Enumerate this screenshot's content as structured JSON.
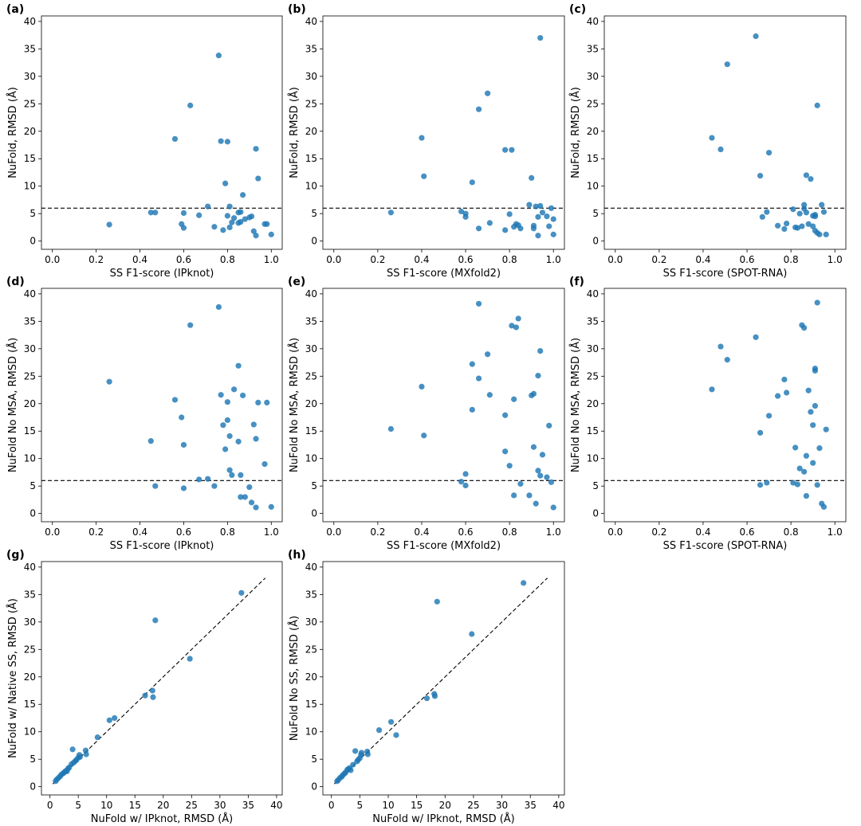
{
  "chart_data": [
    {
      "panel": "(a)",
      "type": "scatter",
      "xlabel": "SS F1-score (IPknot)",
      "ylabel": "NuFold, RMSD (Å)",
      "xlim": [
        -0.05,
        1.05
      ],
      "ylim": [
        -1.5,
        41
      ],
      "xticks": [
        "0.0",
        "0.2",
        "0.4",
        "0.6",
        "0.8",
        "1.0"
      ],
      "yticks": [
        "0",
        "5",
        "10",
        "15",
        "20",
        "25",
        "30",
        "35",
        "40"
      ],
      "hline": 6,
      "color": "#1f77b4",
      "x": [
        0.26,
        0.45,
        0.47,
        0.56,
        0.59,
        0.6,
        0.6,
        0.63,
        0.67,
        0.71,
        0.74,
        0.76,
        0.77,
        0.78,
        0.79,
        0.8,
        0.8,
        0.81,
        0.81,
        0.82,
        0.83,
        0.85,
        0.85,
        0.86,
        0.86,
        0.87,
        0.88,
        0.9,
        0.91,
        0.92,
        0.93,
        0.93,
        0.94,
        0.97,
        0.98,
        1.0
      ],
      "y": [
        3.0,
        5.2,
        5.2,
        18.6,
        3.1,
        2.4,
        5.1,
        24.7,
        4.7,
        6.3,
        2.6,
        33.8,
        18.2,
        2.0,
        10.5,
        18.1,
        4.6,
        6.3,
        2.5,
        3.4,
        4.2,
        3.3,
        5.2,
        3.5,
        5.3,
        8.4,
        4.0,
        4.3,
        4.5,
        1.8,
        16.8,
        1.0,
        11.4,
        3.1,
        3.1,
        1.2
      ]
    },
    {
      "panel": "(b)",
      "type": "scatter",
      "xlabel": "SS F1-score (MXfold2)",
      "ylabel": "NuFold, RMSD (Å)",
      "xlim": [
        -0.05,
        1.05
      ],
      "ylim": [
        -1.5,
        41
      ],
      "xticks": [
        "0.0",
        "0.2",
        "0.4",
        "0.6",
        "0.8",
        "1.0"
      ],
      "yticks": [
        "0",
        "5",
        "10",
        "15",
        "20",
        "25",
        "30",
        "35",
        "40"
      ],
      "hline": 6,
      "color": "#1f77b4",
      "x": [
        0.26,
        0.4,
        0.41,
        0.58,
        0.6,
        0.6,
        0.63,
        0.66,
        0.66,
        0.7,
        0.71,
        0.78,
        0.78,
        0.8,
        0.81,
        0.82,
        0.83,
        0.84,
        0.85,
        0.89,
        0.9,
        0.91,
        0.91,
        0.92,
        0.93,
        0.93,
        0.94,
        0.94,
        0.95,
        0.97,
        0.98,
        0.99,
        1.0,
        1.0
      ],
      "y": [
        5.2,
        18.8,
        11.8,
        5.4,
        4.4,
        5.0,
        10.7,
        2.3,
        24.0,
        26.9,
        3.3,
        16.6,
        2.0,
        4.9,
        16.6,
        2.6,
        3.1,
        2.9,
        2.3,
        6.6,
        11.5,
        2.3,
        2.8,
        6.3,
        1.0,
        4.4,
        37.0,
        6.4,
        5.2,
        4.5,
        2.7,
        6.0,
        1.2,
        4.0
      ]
    },
    {
      "panel": "(c)",
      "type": "scatter",
      "xlabel": "SS F1-score (SPOT-RNA)",
      "ylabel": "NuFold, RMSD (Å)",
      "xlim": [
        -0.05,
        1.05
      ],
      "ylim": [
        -1.5,
        41
      ],
      "xticks": [
        "0.0",
        "0.2",
        "0.4",
        "0.6",
        "0.8",
        "1.0"
      ],
      "yticks": [
        "0",
        "5",
        "10",
        "15",
        "20",
        "25",
        "30",
        "35",
        "40"
      ],
      "hline": 6,
      "color": "#1f77b4",
      "x": [
        0.44,
        0.48,
        0.51,
        0.64,
        0.66,
        0.67,
        0.69,
        0.7,
        0.74,
        0.77,
        0.78,
        0.81,
        0.82,
        0.83,
        0.84,
        0.85,
        0.86,
        0.86,
        0.87,
        0.87,
        0.88,
        0.89,
        0.9,
        0.9,
        0.91,
        0.91,
        0.91,
        0.92,
        0.92,
        0.93,
        0.94,
        0.95,
        0.96
      ],
      "y": [
        18.8,
        16.7,
        32.2,
        37.3,
        11.9,
        4.4,
        5.3,
        16.1,
        2.8,
        2.2,
        3.2,
        5.8,
        2.5,
        2.4,
        5.0,
        2.7,
        5.9,
        6.6,
        12.0,
        5.2,
        3.1,
        11.3,
        4.6,
        2.7,
        4.8,
        4.5,
        1.9,
        24.7,
        1.5,
        1.2,
        6.6,
        5.3,
        1.2
      ]
    },
    {
      "panel": "(d)",
      "type": "scatter",
      "xlabel": "SS F1-score (IPknot)",
      "ylabel": "NuFold No MSA, RMSD (Å)",
      "xlim": [
        -0.05,
        1.05
      ],
      "ylim": [
        -1.5,
        41
      ],
      "xticks": [
        "0.0",
        "0.2",
        "0.4",
        "0.6",
        "0.8",
        "1.0"
      ],
      "yticks": [
        "0",
        "5",
        "10",
        "15",
        "20",
        "25",
        "30",
        "35",
        "40"
      ],
      "hline": 6,
      "color": "#1f77b4",
      "x": [
        0.26,
        0.45,
        0.47,
        0.56,
        0.59,
        0.6,
        0.6,
        0.63,
        0.67,
        0.71,
        0.74,
        0.76,
        0.77,
        0.78,
        0.79,
        0.8,
        0.8,
        0.81,
        0.81,
        0.82,
        0.83,
        0.85,
        0.85,
        0.86,
        0.86,
        0.87,
        0.88,
        0.9,
        0.91,
        0.92,
        0.93,
        0.93,
        0.94,
        0.97,
        0.98,
        1.0
      ],
      "y": [
        24.0,
        13.2,
        5.0,
        20.7,
        17.5,
        12.5,
        4.6,
        34.3,
        6.2,
        6.3,
        5.0,
        37.6,
        21.6,
        16.1,
        11.7,
        20.3,
        17.0,
        7.9,
        14.1,
        7.0,
        22.6,
        26.9,
        13.1,
        7.0,
        3.0,
        21.5,
        3.0,
        4.8,
        2.0,
        16.2,
        13.6,
        1.1,
        20.2,
        9.0,
        20.2,
        1.2
      ]
    },
    {
      "panel": "(e)",
      "type": "scatter",
      "xlabel": "SS F1-score (MXfold2)",
      "ylabel": "NuFold No MSA, RMSD (Å)",
      "xlim": [
        -0.05,
        1.05
      ],
      "ylim": [
        -1.5,
        41
      ],
      "xticks": [
        "0.0",
        "0.2",
        "0.4",
        "0.6",
        "0.8",
        "1.0"
      ],
      "yticks": [
        "0",
        "5",
        "10",
        "15",
        "20",
        "25",
        "30",
        "35",
        "40"
      ],
      "hline": 6,
      "color": "#1f77b4",
      "x": [
        0.26,
        0.4,
        0.41,
        0.58,
        0.6,
        0.6,
        0.63,
        0.63,
        0.66,
        0.66,
        0.7,
        0.71,
        0.78,
        0.78,
        0.8,
        0.81,
        0.82,
        0.82,
        0.83,
        0.84,
        0.85,
        0.89,
        0.9,
        0.91,
        0.91,
        0.92,
        0.93,
        0.93,
        0.94,
        0.94,
        0.95,
        0.97,
        0.98,
        0.99,
        1.0
      ],
      "y": [
        15.4,
        23.1,
        14.2,
        5.8,
        7.2,
        5.1,
        27.2,
        18.9,
        24.6,
        38.2,
        29.0,
        21.6,
        17.9,
        11.3,
        8.7,
        34.2,
        20.8,
        3.3,
        33.9,
        35.5,
        5.4,
        3.3,
        21.5,
        12.1,
        21.8,
        1.8,
        7.8,
        25.1,
        29.6,
        6.9,
        10.7,
        6.6,
        16.0,
        5.7,
        1.1
      ]
    },
    {
      "panel": "(f)",
      "type": "scatter",
      "xlabel": "SS F1-score (SPOT-RNA)",
      "ylabel": "NuFold No MSA, RMSD (Å)",
      "xlim": [
        -0.05,
        1.05
      ],
      "ylim": [
        -1.5,
        41
      ],
      "xticks": [
        "0.0",
        "0.2",
        "0.4",
        "0.6",
        "0.8",
        "1.0"
      ],
      "yticks": [
        "0",
        "5",
        "10",
        "15",
        "20",
        "25",
        "30",
        "35",
        "40"
      ],
      "hline": 6,
      "color": "#1f77b4",
      "x": [
        0.44,
        0.48,
        0.51,
        0.64,
        0.66,
        0.66,
        0.69,
        0.7,
        0.74,
        0.77,
        0.78,
        0.81,
        0.82,
        0.83,
        0.84,
        0.85,
        0.86,
        0.86,
        0.87,
        0.87,
        0.88,
        0.89,
        0.9,
        0.9,
        0.91,
        0.91,
        0.91,
        0.92,
        0.92,
        0.93,
        0.94,
        0.95,
        0.96
      ],
      "y": [
        22.6,
        30.4,
        28.0,
        32.1,
        14.7,
        5.2,
        5.6,
        17.8,
        21.4,
        24.4,
        22.0,
        5.6,
        12.0,
        5.3,
        8.2,
        34.3,
        33.8,
        7.6,
        3.2,
        10.5,
        22.4,
        18.5,
        16.1,
        9.2,
        26.4,
        26.0,
        19.6,
        5.2,
        38.4,
        11.9,
        1.8,
        1.2,
        15.3
      ]
    },
    {
      "panel": "(g)",
      "type": "scatter",
      "xlabel": "NuFold w/ IPknot, RMSD (Å)",
      "ylabel": "NuFold w/ Native SS, RMSD (Å)",
      "xlim": [
        -1.5,
        41
      ],
      "ylim": [
        -1.5,
        41
      ],
      "xticks": [
        "0",
        "5",
        "10",
        "15",
        "20",
        "25",
        "30",
        "35",
        "40"
      ],
      "yticks": [
        "0",
        "5",
        "10",
        "15",
        "20",
        "25",
        "30",
        "35",
        "40"
      ],
      "diagonal": [
        0.5,
        38
      ],
      "color": "#1f77b4",
      "x": [
        1.0,
        1.2,
        1.5,
        1.8,
        2.0,
        2.3,
        2.5,
        2.8,
        3.0,
        3.2,
        3.4,
        3.8,
        4.0,
        4.2,
        4.5,
        4.7,
        5.0,
        5.2,
        5.3,
        6.3,
        6.4,
        8.4,
        10.5,
        11.4,
        16.8,
        18.1,
        18.2,
        18.6,
        24.7,
        33.8
      ],
      "y": [
        1.0,
        1.3,
        1.6,
        1.9,
        2.2,
        2.4,
        2.6,
        2.9,
        2.8,
        3.3,
        3.5,
        4.1,
        6.8,
        4.4,
        4.7,
        4.9,
        5.3,
        5.8,
        5.4,
        6.6,
        5.9,
        9.0,
        12.1,
        12.5,
        16.6,
        17.5,
        16.3,
        30.3,
        23.3,
        35.3
      ]
    },
    {
      "panel": "(h)",
      "type": "scatter",
      "xlabel": "NuFold w/ IPknot, RMSD (Å)",
      "ylabel": "NuFold No SS, RMSD (Å)",
      "xlim": [
        -1.5,
        41
      ],
      "ylim": [
        -1.5,
        41
      ],
      "xticks": [
        "0",
        "5",
        "10",
        "15",
        "20",
        "25",
        "30",
        "35",
        "40"
      ],
      "yticks": [
        "0",
        "5",
        "10",
        "15",
        "20",
        "25",
        "30",
        "35",
        "40"
      ],
      "diagonal": [
        0.5,
        38
      ],
      "color": "#1f77b4",
      "x": [
        1.0,
        1.2,
        1.5,
        1.8,
        2.0,
        2.3,
        2.5,
        2.8,
        3.0,
        3.2,
        3.4,
        3.8,
        4.2,
        4.5,
        4.7,
        5.0,
        5.2,
        5.3,
        6.3,
        6.4,
        8.4,
        10.5,
        11.4,
        16.8,
        18.1,
        18.2,
        18.6,
        24.7,
        33.8
      ],
      "y": [
        1.0,
        1.2,
        1.6,
        1.8,
        2.1,
        2.4,
        2.6,
        3.1,
        3.2,
        3.4,
        3.0,
        4.0,
        6.5,
        4.6,
        4.9,
        5.2,
        5.8,
        6.2,
        6.4,
        5.9,
        10.3,
        11.8,
        9.4,
        16.1,
        16.9,
        16.5,
        33.7,
        27.8,
        37.1
      ]
    }
  ]
}
